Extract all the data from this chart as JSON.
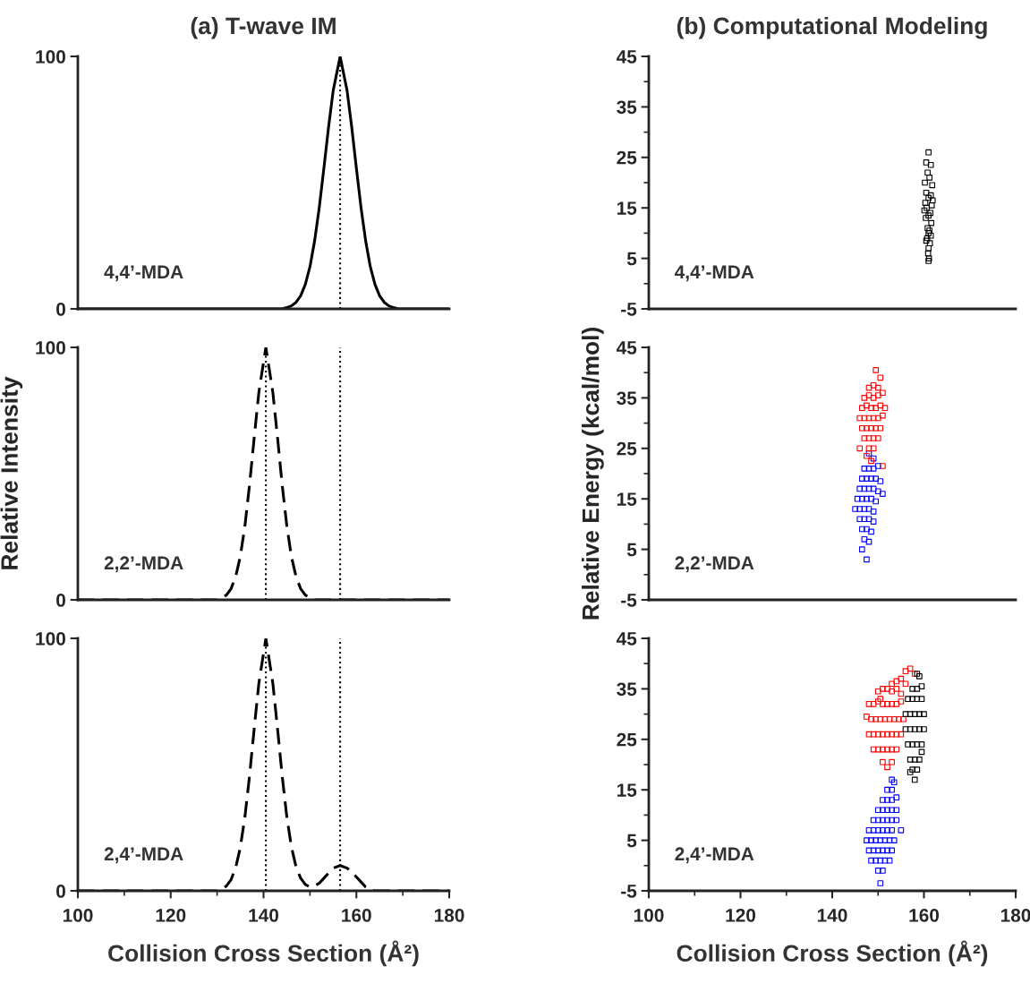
{
  "chart_data": [
    {
      "type": "line",
      "title": "(a) T-wave IM",
      "annotations": [
        "4,4’-MDA"
      ],
      "xlim": [
        100,
        180
      ],
      "ylim": [
        0,
        100
      ],
      "yticks": [
        0,
        100
      ],
      "tick_labels": "y",
      "line_style": "solid",
      "ref_lines": [
        {
          "axis": "x",
          "value": 156.5,
          "color": "#000000",
          "line_style": "dotted"
        }
      ],
      "series": [
        {
          "color": "#000000",
          "x": [
            100,
            144,
            145,
            146,
            147,
            148,
            149,
            150,
            151,
            152,
            153,
            154,
            155,
            156.5,
            158,
            159,
            160,
            161,
            162,
            163,
            164,
            165,
            166,
            167,
            168,
            169,
            180
          ],
          "values": [
            0,
            0,
            0.5,
            1.2,
            2.6,
            5.2,
            9.7,
            16.7,
            26.9,
            40.1,
            55.7,
            71.9,
            86.4,
            100,
            86.4,
            71.9,
            55.7,
            40.1,
            26.9,
            16.7,
            9.7,
            5.2,
            2.6,
            1.2,
            0.5,
            0,
            0
          ]
        }
      ]
    },
    {
      "type": "scatter",
      "title": "(b) Computational Modeling",
      "annotations": [
        "4,4’-MDA"
      ],
      "xlim": [
        100,
        180
      ],
      "ylim": [
        -5,
        45
      ],
      "yticks": [
        -5,
        5,
        15,
        25,
        35,
        45
      ],
      "tick_labels": "y",
      "marker": "square",
      "series": [
        {
          "color": "#000000",
          "x": [
            161,
            160.5,
            161.5,
            160.8,
            161.2,
            160.2,
            161.8,
            160.5,
            161.5,
            161,
            160.3,
            161.7,
            160.6,
            161.4,
            161,
            160.4,
            161.6,
            160.8,
            161.2,
            161,
            160.1,
            161.9,
            160.7,
            161.3,
            161,
            160.5,
            161.5,
            160.9,
            161.1,
            161
          ],
          "values": [
            26,
            24,
            23.5,
            22,
            21,
            20,
            19.5,
            18,
            17.5,
            17,
            16,
            15.5,
            15,
            14,
            13.5,
            13,
            12,
            11,
            10.5,
            10,
            14.5,
            16.5,
            9,
            8,
            7,
            8.5,
            9.5,
            6,
            5,
            4.5
          ]
        }
      ]
    },
    {
      "type": "line",
      "ylabel": "Relative Intensity",
      "annotations": [
        "2,2’-MDA"
      ],
      "xlim": [
        100,
        180
      ],
      "ylim": [
        0,
        100
      ],
      "yticks": [
        0,
        100
      ],
      "tick_labels": "y",
      "line_style": "dashed",
      "ref_lines": [
        {
          "axis": "x",
          "value": 140.5,
          "color": "#000000",
          "line_style": "dotted"
        },
        {
          "axis": "x",
          "value": 156.5,
          "color": "#000000",
          "line_style": "dotted"
        }
      ],
      "series": [
        {
          "color": "#000000",
          "x": [
            100,
            130,
            131,
            132,
            133,
            134,
            135,
            136,
            137,
            138,
            139,
            140.5,
            142,
            143,
            144,
            145,
            146,
            147,
            148,
            149,
            150,
            151,
            180
          ],
          "values": [
            0,
            0,
            0.8,
            1.9,
            4.4,
            9.2,
            17.2,
            29.5,
            45.8,
            64.5,
            82.3,
            100,
            82.3,
            64.5,
            45.8,
            29.5,
            17.2,
            9.2,
            4.4,
            1.9,
            0.8,
            0,
            0
          ]
        }
      ]
    },
    {
      "type": "scatter",
      "ylabel": "Relative Energy (kcal/mol)",
      "annotations": [
        "2,2’-MDA"
      ],
      "xlim": [
        100,
        180
      ],
      "ylim": [
        -5,
        45
      ],
      "yticks": [
        -5,
        5,
        15,
        25,
        35,
        45
      ],
      "tick_labels": "y",
      "marker": "square",
      "series": [
        {
          "color": "#0000ff",
          "x": [
            148,
            149,
            147,
            148,
            149,
            150,
            146.5,
            147.5,
            148.5,
            149.5,
            150.5,
            146,
            147,
            148,
            149,
            150,
            145.5,
            146.5,
            147.5,
            148.5,
            149.5,
            145,
            146,
            147,
            148,
            149,
            146,
            147,
            148,
            149,
            146.5,
            147.5,
            148.5,
            147,
            148,
            146.5,
            147.5,
            151
          ],
          "values": [
            24,
            23,
            21,
            21,
            21,
            21.5,
            19,
            19,
            19,
            19,
            18.5,
            17,
            17,
            17,
            17,
            16.5,
            15,
            15,
            15,
            15,
            14.5,
            13,
            13,
            13,
            13,
            12.5,
            11,
            11,
            11,
            10.5,
            9,
            9,
            8.5,
            7,
            6.5,
            5,
            3,
            16
          ]
        },
        {
          "color": "#ff0000",
          "x": [
            149.5,
            150.5,
            148,
            149,
            150,
            147,
            148,
            149,
            150,
            151,
            146.5,
            147.5,
            148.5,
            149.5,
            150.5,
            151.5,
            146,
            147,
            148,
            149,
            150,
            151,
            146.5,
            147.5,
            148.5,
            149.5,
            150.5,
            147,
            148,
            149,
            150,
            148,
            149,
            147.5,
            148.5,
            151,
            146
          ],
          "values": [
            40.5,
            39,
            37,
            37.5,
            37,
            35,
            35.5,
            35,
            35.5,
            36,
            33,
            33.5,
            33,
            33,
            33.5,
            33,
            31,
            31,
            31,
            31,
            31,
            31.5,
            29,
            29,
            29,
            29,
            29,
            27,
            27,
            27,
            27,
            25,
            25,
            23.5,
            22.5,
            21.5,
            25
          ]
        }
      ]
    },
    {
      "type": "line",
      "xlabel": "Collision Cross Section (Å²)",
      "annotations": [
        "2,4’-MDA"
      ],
      "xlim": [
        100,
        180
      ],
      "ylim": [
        0,
        100
      ],
      "xticks": [
        100,
        120,
        140,
        160,
        180
      ],
      "yticks": [
        0,
        100
      ],
      "line_style": "dashed",
      "ref_lines": [
        {
          "axis": "x",
          "value": 140.5,
          "color": "#000000",
          "line_style": "dotted"
        },
        {
          "axis": "x",
          "value": 156.5,
          "color": "#000000",
          "line_style": "dotted"
        }
      ],
      "series": [
        {
          "color": "#000000",
          "x": [
            100,
            130,
            131,
            132,
            133,
            134,
            135,
            136,
            137,
            138,
            139,
            140.5,
            142,
            143,
            144,
            145,
            146,
            147,
            148,
            149,
            150,
            151,
            152,
            153,
            154,
            155,
            156.5,
            158,
            159,
            160,
            161,
            162,
            163,
            164,
            180
          ],
          "values": [
            0,
            0,
            0.8,
            1.9,
            4.4,
            9.2,
            17.2,
            29.5,
            45.8,
            64.5,
            82.3,
            100,
            82.3,
            64.5,
            45.8,
            29.5,
            17.5,
            9.5,
            5,
            2.5,
            1.5,
            2,
            3,
            5,
            7,
            9,
            10,
            9,
            7.5,
            5.5,
            3.5,
            1.5,
            0.5,
            0,
            0
          ]
        }
      ]
    },
    {
      "type": "scatter",
      "xlabel": "Collision Cross Section (Å²)",
      "annotations": [
        "2,4’-MDA"
      ],
      "xlim": [
        100,
        180
      ],
      "ylim": [
        -5,
        45
      ],
      "xticks": [
        100,
        120,
        140,
        160,
        180
      ],
      "yticks": [
        -5,
        5,
        15,
        25,
        35,
        45
      ],
      "marker": "square",
      "series": [
        {
          "color": "#ff0000",
          "x": [
            156,
            157,
            158,
            153,
            154,
            155,
            156,
            150,
            151,
            152,
            153,
            154,
            155,
            148,
            149,
            150,
            151,
            152,
            153,
            154,
            155,
            147.5,
            148.5,
            149.5,
            150.5,
            151.5,
            152.5,
            153.5,
            154.5,
            155.5,
            148,
            149,
            150,
            151,
            152,
            153,
            154,
            155,
            149,
            150,
            151,
            152,
            153,
            154,
            151,
            152,
            153,
            150.5
          ],
          "values": [
            38.5,
            39,
            38,
            36,
            36.5,
            37,
            36,
            34.5,
            35,
            35,
            34.5,
            35,
            34,
            32,
            32,
            32.5,
            32,
            32,
            32,
            32,
            32.5,
            29.5,
            29,
            29,
            29,
            29,
            29,
            29,
            29,
            29,
            26,
            26,
            26,
            26,
            26,
            26,
            26,
            26,
            23,
            23,
            23,
            23,
            23,
            23,
            20.5,
            19.5,
            20.5,
            33
          ]
        },
        {
          "color": "#000000",
          "x": [
            158.5,
            159,
            157.5,
            158.5,
            159.5,
            156.5,
            157.5,
            158.5,
            159.5,
            156,
            157,
            158,
            159,
            160,
            156,
            157,
            158,
            159,
            160,
            156.5,
            157.5,
            158.5,
            159.5,
            157,
            158,
            159,
            157.5,
            158.5,
            158,
            157,
            159.5
          ],
          "values": [
            38,
            37.5,
            35,
            35,
            35.5,
            33,
            33,
            33,
            33,
            30,
            30,
            30,
            30,
            30,
            27,
            27,
            27,
            27,
            27,
            24,
            24,
            24,
            24,
            21,
            21,
            21,
            19,
            19,
            17,
            18.5,
            22.5
          ]
        },
        {
          "color": "#0000ff",
          "x": [
            153,
            153.5,
            152,
            153,
            151,
            152,
            153,
            154,
            150,
            151,
            152,
            153,
            154,
            149,
            150,
            151,
            152,
            153,
            154,
            148,
            149,
            150,
            151,
            152,
            153,
            155,
            147.5,
            148.5,
            149.5,
            150.5,
            151.5,
            152.5,
            153.5,
            148,
            149,
            150,
            151,
            152,
            153,
            148.5,
            149.5,
            150.5,
            151.5,
            152.5,
            150,
            151,
            150.5
          ],
          "values": [
            17,
            16.5,
            15,
            15,
            13,
            13,
            13,
            13.5,
            11,
            11,
            11,
            11,
            11,
            9,
            9,
            9,
            9,
            9,
            9,
            7,
            7,
            7,
            7,
            7,
            7,
            7,
            5,
            5,
            5,
            5,
            5,
            5,
            5,
            3,
            3,
            3,
            3,
            3,
            3,
            1,
            1,
            1,
            1,
            1,
            -1,
            -1,
            -3.5
          ]
        }
      ]
    }
  ]
}
